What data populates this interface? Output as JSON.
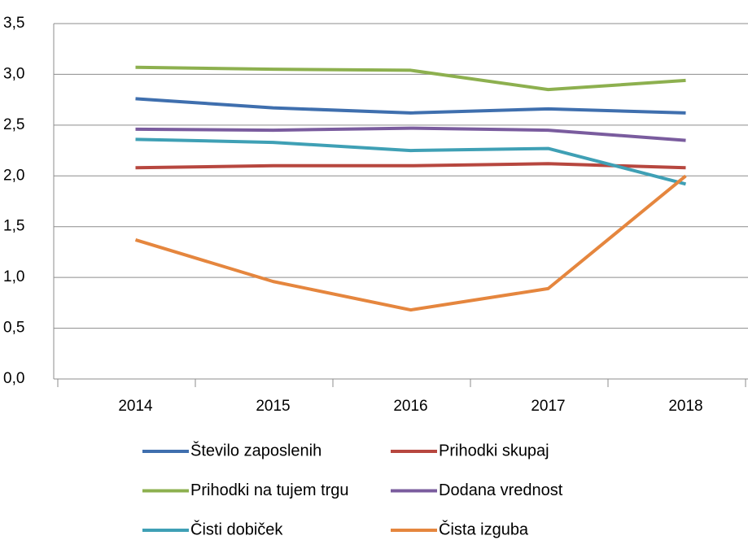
{
  "chart_data": {
    "type": "line",
    "categories": [
      "2014",
      "2015",
      "2016",
      "2017",
      "2018"
    ],
    "series": [
      {
        "name": "Število zaposlenih",
        "color": "#3F6FAE",
        "values": [
          2.76,
          2.67,
          2.62,
          2.66,
          2.62
        ]
      },
      {
        "name": "Prihodki skupaj",
        "color": "#B7473F",
        "values": [
          2.08,
          2.1,
          2.1,
          2.12,
          2.08
        ]
      },
      {
        "name": "Prihodki na tujem trgu",
        "color": "#8DB04F",
        "values": [
          3.07,
          3.05,
          3.04,
          2.85,
          2.94
        ]
      },
      {
        "name": "Dodana vrednost",
        "color": "#7A5C9E",
        "values": [
          2.46,
          2.45,
          2.47,
          2.45,
          2.35
        ]
      },
      {
        "name": "Čisti dobiček",
        "color": "#3FA0B5",
        "values": [
          2.36,
          2.33,
          2.25,
          2.27,
          1.92
        ]
      },
      {
        "name": "Čista izguba",
        "color": "#E5863E",
        "values": [
          1.37,
          0.96,
          0.68,
          0.89,
          2.0
        ]
      }
    ],
    "ylim": [
      0,
      3.5
    ],
    "yticks": [
      {
        "value": 0,
        "label": "0,0"
      },
      {
        "value": 0.5,
        "label": "0,5"
      },
      {
        "value": 1,
        "label": "1,0"
      },
      {
        "value": 1.5,
        "label": "1,5"
      },
      {
        "value": 2,
        "label": "2,0"
      },
      {
        "value": 2.5,
        "label": "2,5"
      },
      {
        "value": 3,
        "label": "3,0"
      },
      {
        "value": 3.5,
        "label": "3,5"
      }
    ],
    "grid": true
  }
}
